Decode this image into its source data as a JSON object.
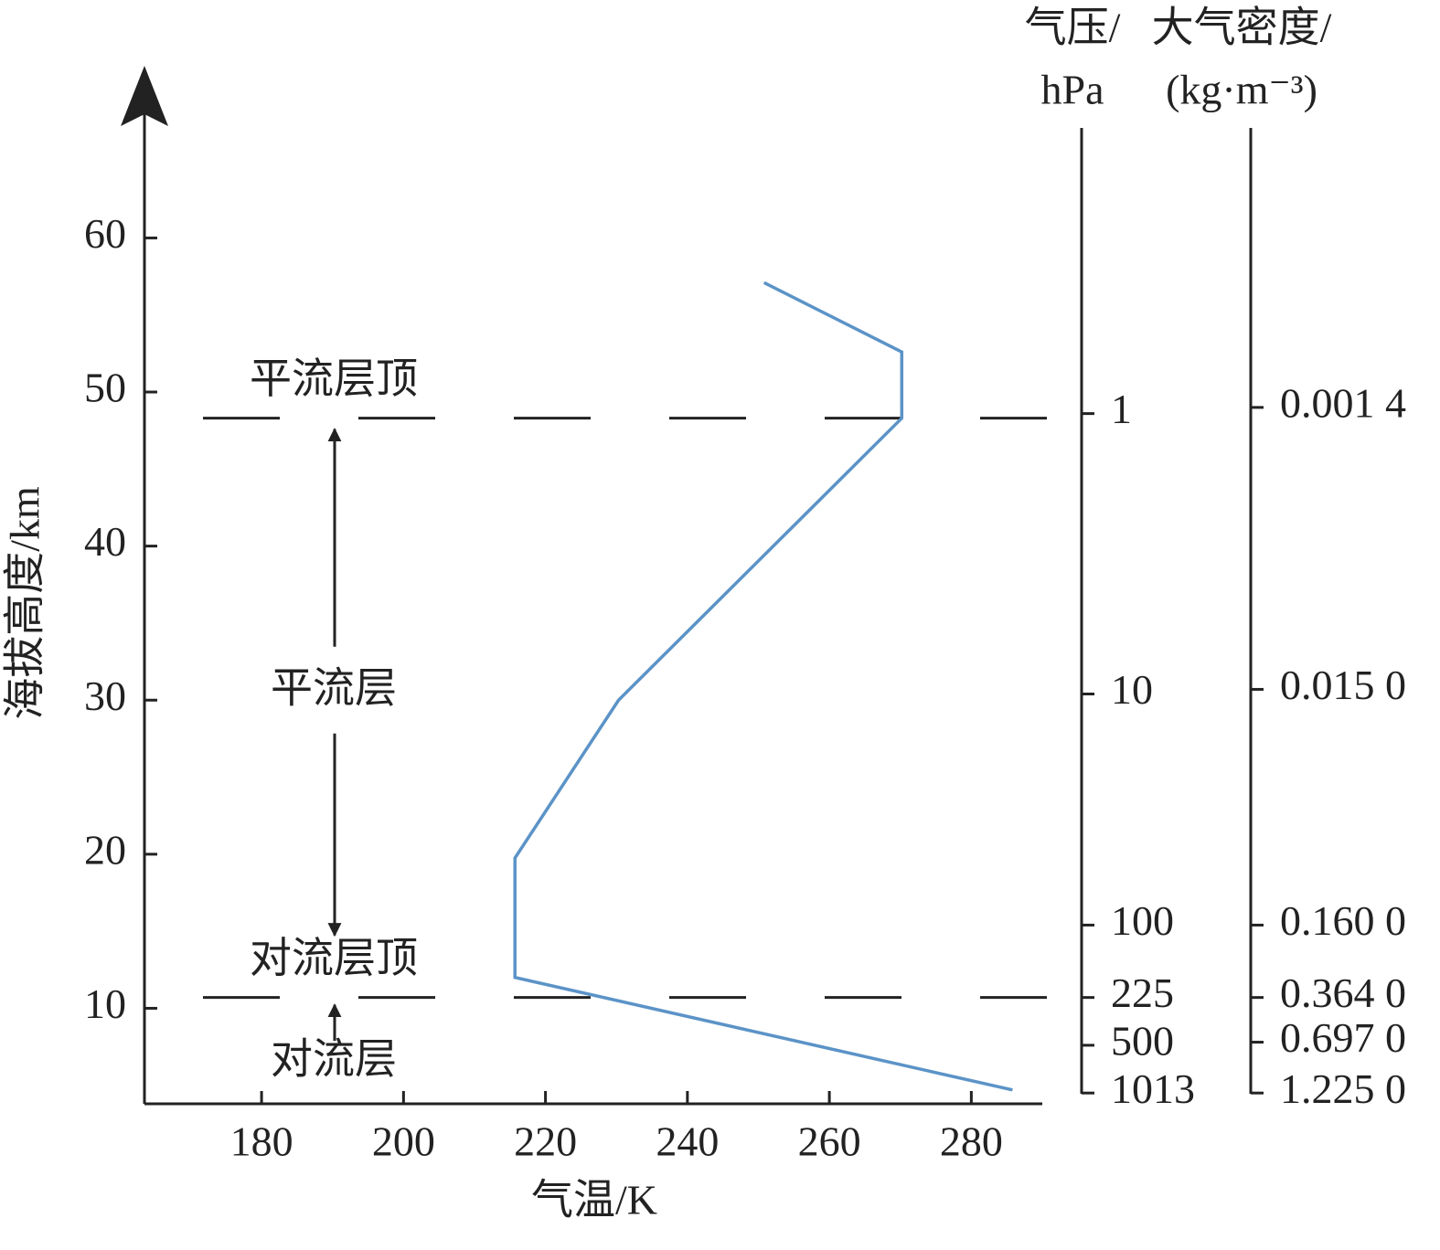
{
  "chart_data": {
    "type": "line",
    "x_label": "气温/K",
    "y_label": "海拔高度/km",
    "xlim": [
      163.5,
      290
    ],
    "xticks": [
      180,
      200,
      220,
      240,
      260,
      280
    ],
    "ylim": [
      3.8,
      70.7
    ],
    "yticks": [
      10,
      20,
      30,
      40,
      50,
      60
    ],
    "series": [
      {
        "color": "#5b93c7",
        "x": [
          285.8,
          215.7,
          215.7,
          230.3,
          270.2,
          270.2,
          250.8
        ],
        "values": [
          4.7,
          12.0,
          19.75,
          30,
          48.3,
          52.6,
          57.1
        ]
      }
    ],
    "boundaries": [
      {
        "label": "平流层顶",
        "altitude": 48.3
      },
      {
        "label": "对流层顶",
        "altitude": 10.7
      }
    ],
    "layers": [
      {
        "label": "平流层",
        "altitude": 30.5
      },
      {
        "label": "对流层",
        "altitude": 6.4
      }
    ],
    "pressure_axis": {
      "title": [
        "气压/",
        "hPa"
      ],
      "ticks": [
        1,
        10,
        100,
        225,
        500,
        1013
      ],
      "heights": [
        48.6,
        30.4,
        15.4,
        10.7,
        7.6,
        4.5
      ]
    },
    "density_axis": {
      "title": [
        "大气密度/",
        "(kg·m⁻³)"
      ],
      "ticks": [
        {
          "value": 0.0014,
          "label": "0.001 4"
        },
        {
          "value": 0.015,
          "label": "0.015 0"
        },
        {
          "value": 0.16,
          "label": "0.160 0"
        },
        {
          "value": 0.364,
          "label": "0.364 0"
        },
        {
          "value": 0.697,
          "label": "0.697 0"
        },
        {
          "value": 1.225,
          "label": "1.225 0"
        }
      ],
      "heights": [
        49.0,
        30.7,
        15.4,
        10.7,
        7.8,
        4.5
      ]
    }
  }
}
